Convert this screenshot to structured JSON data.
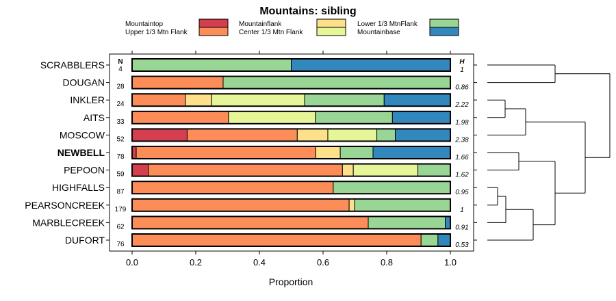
{
  "chart_data": {
    "type": "bar",
    "subtype": "stacked-horizontal-proportion-with-dendrogram",
    "title": "Mountains: sibling",
    "xlabel": "Proportion",
    "ylabel": "",
    "xlim": [
      0,
      1
    ],
    "xticks": [
      "0.0",
      "0.2",
      "0.4",
      "0.6",
      "0.8",
      "1.0"
    ],
    "xtick_values": [
      0,
      0.2,
      0.4,
      0.6,
      0.8,
      1.0
    ],
    "n_header": "N",
    "h_header": "H",
    "highlighted": "NEWBELL",
    "legend": {
      "placement": "top",
      "entries": [
        {
          "name": "Mountaintop",
          "color": "#d53e4f"
        },
        {
          "name": "Upper 1/3 Mtn Flank",
          "color": "#fc8d59"
        },
        {
          "name": "Mountainflank",
          "color": "#fee08b"
        },
        {
          "name": "Center 1/3 Mtn Flank",
          "color": "#e6f598"
        },
        {
          "name": "Lower 1/3 MtnFlank",
          "color": "#99d594"
        },
        {
          "name": "Mountainbase",
          "color": "#3288bd"
        }
      ]
    },
    "rows": [
      {
        "label": "SCRABBLERS",
        "n": "4",
        "h": "1",
        "values": [
          0,
          0,
          0,
          0,
          0.5,
          0.5
        ]
      },
      {
        "label": "DOUGAN",
        "n": "28",
        "h": "0.86",
        "values": [
          0,
          0.286,
          0,
          0,
          0.714,
          0
        ]
      },
      {
        "label": "INKLER",
        "n": "24",
        "h": "2.22",
        "values": [
          0,
          0.167,
          0.083,
          0.292,
          0.25,
          0.208
        ]
      },
      {
        "label": "AITS",
        "n": "33",
        "h": "1.98",
        "values": [
          0,
          0.303,
          0,
          0.273,
          0.242,
          0.182
        ]
      },
      {
        "label": "MOSCOW",
        "n": "52",
        "h": "2.38",
        "values": [
          0.173,
          0.346,
          0.096,
          0.154,
          0.058,
          0.173
        ]
      },
      {
        "label": "NEWBELL",
        "n": "78",
        "h": "1.66",
        "values": [
          0.013,
          0.564,
          0.077,
          0,
          0.103,
          0.243
        ]
      },
      {
        "label": "PEPOON",
        "n": "59",
        "h": "1.62",
        "values": [
          0.051,
          0.61,
          0.034,
          0.203,
          0.102,
          0
        ]
      },
      {
        "label": "HIGHFALLS",
        "n": "87",
        "h": "0.95",
        "values": [
          0,
          0.632,
          0,
          0,
          0.368,
          0
        ]
      },
      {
        "label": "PEARSONCREEK",
        "n": "179",
        "h": "1",
        "values": [
          0,
          0.682,
          0.017,
          0,
          0.301,
          0
        ]
      },
      {
        "label": "MARBLECREEK",
        "n": "62",
        "h": "0.91",
        "values": [
          0,
          0.742,
          0,
          0,
          0.242,
          0.016
        ]
      },
      {
        "label": "DUFORT",
        "n": "76",
        "h": "0.53",
        "values": [
          0,
          0.908,
          0,
          0,
          0.053,
          0.039
        ]
      }
    ]
  }
}
